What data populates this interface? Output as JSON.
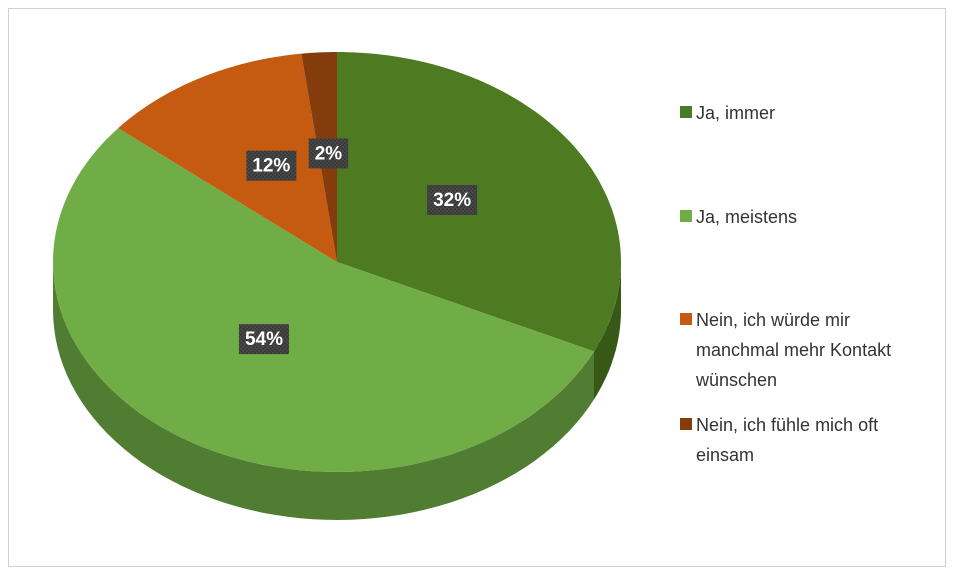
{
  "chart_data": {
    "type": "pie",
    "categories": [
      "Ja, immer",
      "Ja, meistens",
      "Nein, ich würde mir manchmal mehr Kontakt wünschen",
      "Nein, ich fühle mich oft einsam"
    ],
    "values": [
      32,
      54,
      12,
      2
    ],
    "value_labels": [
      "32%",
      "54%",
      "12%",
      "2%"
    ],
    "colors": [
      "#4e7a21",
      "#70ad47",
      "#c55a11",
      "#843c0c"
    ],
    "legend": "right"
  }
}
